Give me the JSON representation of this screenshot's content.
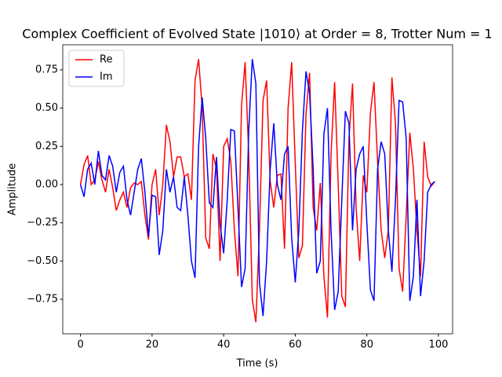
{
  "chart_data": {
    "type": "line",
    "title": "Complex Coefficient of Evolved State |1010⟩ at Order = 8, Trotter Num = 1",
    "xlabel": "Time (s)",
    "ylabel": "Amplitude",
    "x": [
      0,
      1,
      2,
      3,
      4,
      5,
      6,
      7,
      8,
      9,
      10,
      11,
      12,
      13,
      14,
      15,
      16,
      17,
      18,
      19,
      20,
      21,
      22,
      23,
      24,
      25,
      26,
      27,
      28,
      29,
      30,
      31,
      32,
      33,
      34,
      35,
      36,
      37,
      38,
      39,
      40,
      41,
      42,
      43,
      44,
      45,
      46,
      47,
      48,
      49,
      50,
      51,
      52,
      53,
      54,
      55,
      56,
      57,
      58,
      59,
      60,
      61,
      62,
      63,
      64,
      65,
      66,
      67,
      68,
      69,
      70,
      71,
      72,
      73,
      74,
      75,
      76,
      77,
      78,
      79,
      80,
      81,
      82,
      83,
      84,
      85,
      86,
      87,
      88,
      89,
      90,
      91,
      92,
      93,
      94,
      95,
      96,
      97,
      98,
      99
    ],
    "series": [
      {
        "name": "Re",
        "color": "#ff0000",
        "values": [
          0,
          0.13,
          0.19,
          0,
          0.03,
          0.15,
          0.03,
          -0.05,
          0.1,
          -0.02,
          -0.17,
          -0.1,
          -0.05,
          -0.15,
          -0.02,
          0.01,
          0,
          0.02,
          -0.2,
          -0.36,
          0,
          0.1,
          -0.2,
          0,
          0.39,
          0.28,
          0.05,
          0.18,
          0.18,
          0.05,
          0.07,
          -0.1,
          0.68,
          0.82,
          0.5,
          -0.35,
          -0.42,
          0.2,
          0.1,
          -0.5,
          0.25,
          0.3,
          0.15,
          -0.3,
          -0.6,
          0.52,
          0.8,
          0.2,
          -0.75,
          -0.9,
          -0.3,
          0.55,
          0.68,
          0.02,
          -0.15,
          0.06,
          0.07,
          -0.42,
          0.5,
          0.8,
          0.14,
          -0.48,
          -0.4,
          0.46,
          0.73,
          -0.15,
          -0.3,
          0.01,
          -0.6,
          -0.87,
          0.2,
          0.67,
          0,
          -0.73,
          -0.8,
          0.3,
          0.66,
          -0.15,
          -0.5,
          0.06,
          -0.05,
          0.47,
          0.67,
          0.15,
          -0.3,
          -0.48,
          -0.3,
          0.7,
          0.4,
          -0.55,
          -0.7,
          -0.2,
          0.34,
          0.1,
          -0.3,
          -0.6,
          0.28,
          0.05,
          -0.01,
          0.02
        ]
      },
      {
        "name": "Im",
        "color": "#0000ff",
        "values": [
          0,
          -0.08,
          0.1,
          0.14,
          0,
          0.22,
          0.06,
          0.03,
          0.19,
          0.12,
          -0.05,
          0.08,
          0.12,
          -0.1,
          -0.2,
          -0.05,
          0.1,
          0.17,
          -0.05,
          -0.34,
          -0.07,
          -0.08,
          -0.46,
          -0.3,
          0.1,
          -0.05,
          0.05,
          -0.15,
          -0.17,
          0.05,
          -0.2,
          -0.5,
          -0.61,
          0.25,
          0.57,
          0.3,
          -0.12,
          -0.15,
          0.18,
          -0.26,
          -0.45,
          -0.1,
          0.36,
          0.35,
          -0.15,
          -0.67,
          -0.55,
          0.35,
          0.82,
          0.66,
          -0.64,
          -0.86,
          -0.5,
          0.1,
          0.4,
          0,
          -0.1,
          0.2,
          0.25,
          -0.35,
          -0.64,
          -0.3,
          0.35,
          0.74,
          0.6,
          0.1,
          -0.58,
          -0.5,
          0.33,
          0.5,
          -0.3,
          -0.82,
          -0.7,
          -0.1,
          0.48,
          0.4,
          -0.3,
          0.1,
          0.2,
          0.25,
          -0.25,
          -0.69,
          -0.76,
          0.1,
          0.28,
          0.2,
          -0.3,
          -0.57,
          -0.1,
          0.55,
          0.54,
          0.3,
          -0.76,
          -0.6,
          -0.1,
          -0.73,
          -0.5,
          -0.05,
          0,
          0.02
        ]
      }
    ],
    "xlim": [
      -4.95,
      103.95
    ],
    "xticks": [
      0,
      20,
      40,
      60,
      80,
      100
    ],
    "ylim": [
      -0.976,
      0.914
    ],
    "yticks": [
      {
        "value": -0.75,
        "label": "−0.75"
      },
      {
        "value": -0.5,
        "label": "−0.50"
      },
      {
        "value": -0.25,
        "label": "−0.25"
      },
      {
        "value": 0,
        "label": "0.00"
      },
      0.25,
      {
        "value": 0.5,
        "label": "0.50"
      },
      0.75
    ],
    "legend": "upper left",
    "grid": false
  }
}
